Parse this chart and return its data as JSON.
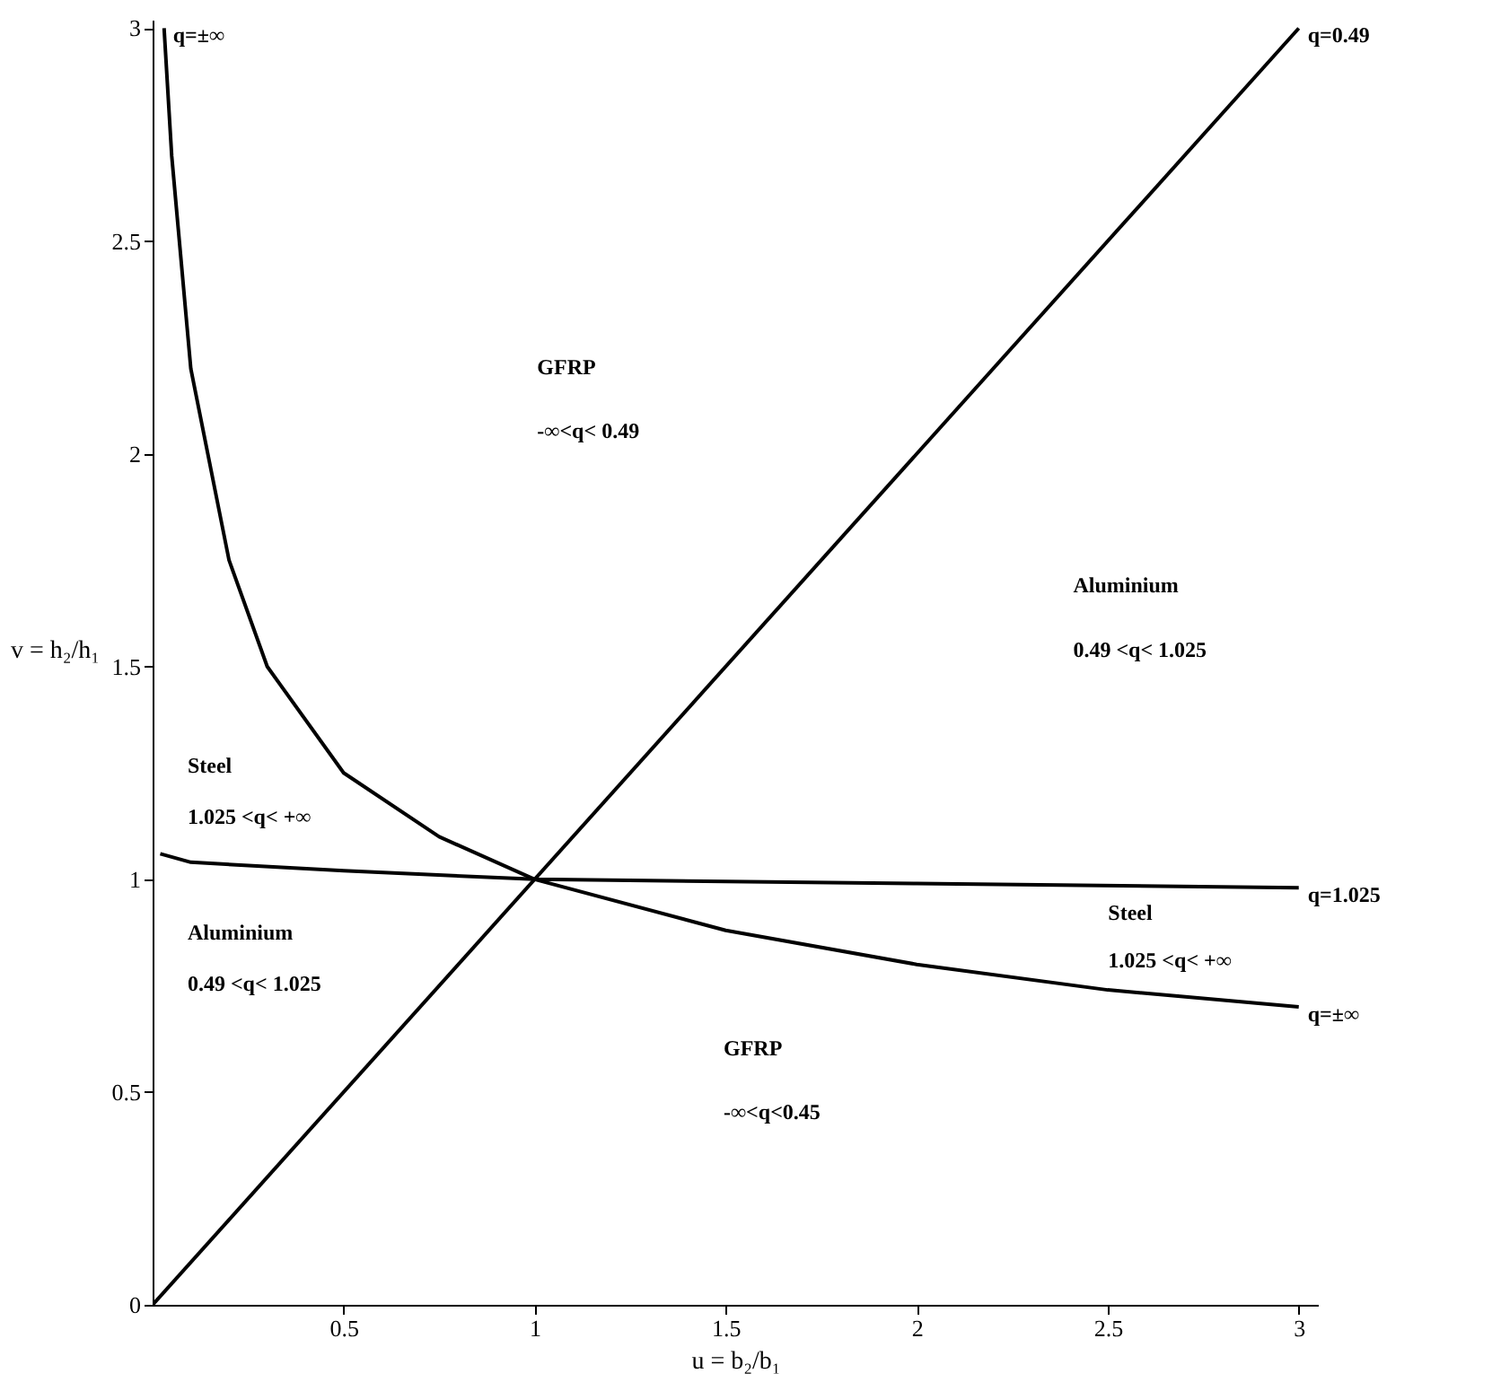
{
  "chart_data": {
    "type": "line",
    "xlabel": "u = b₂/b₁",
    "ylabel": "v = h₂/h₁",
    "xlim": [
      0,
      3.05
    ],
    "ylim": [
      0,
      3.02
    ],
    "xticks": [
      0.5,
      1,
      1.5,
      2,
      2.5,
      3
    ],
    "yticks": [
      0,
      0.5,
      1,
      1.5,
      2,
      2.5,
      3
    ],
    "grid": false,
    "marker": "none",
    "line_style": "solid",
    "series": [
      {
        "color": "#000000",
        "x": [
          0.03,
          0.05,
          0.1,
          0.2,
          0.3,
          0.5,
          0.75,
          1,
          1.5,
          2,
          2.5,
          3
        ],
        "values": [
          3.0,
          2.7,
          2.2,
          1.75,
          1.5,
          1.25,
          1.1,
          1.0,
          0.88,
          0.8,
          0.74,
          0.7
        ]
      },
      {
        "color": "#000000",
        "x": [
          0.02,
          0.1,
          0.5,
          1,
          2,
          3
        ],
        "values": [
          1.06,
          1.04,
          1.02,
          1.0,
          0.99,
          0.98
        ]
      },
      {
        "color": "#000000",
        "x": [
          0,
          3
        ],
        "values": [
          0,
          3
        ]
      }
    ],
    "annotations": [
      "q=±∞",
      "q=0.49",
      "q=1.025",
      "q=±∞",
      "GFRP",
      "-∞<q< 0.49",
      "Aluminium",
      "0.49 <q< 1.025",
      "Steel",
      "1.025 <q< +∞",
      "Aluminium",
      "0.49 <q< 1.025",
      "Steel",
      "1.025 <q< +∞",
      "GFRP",
      "-∞<q<0.45"
    ]
  }
}
